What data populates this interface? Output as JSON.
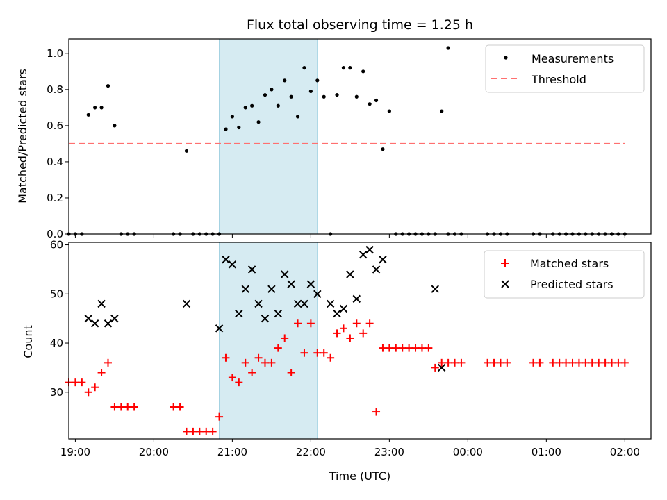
{
  "chart_data": [
    {
      "type": "scatter",
      "title": "Flux total observing time = 1.25 h",
      "xlabel": "",
      "ylabel": "Matched/Predicted stars",
      "xlim": [
        "18:55",
        "02:20"
      ],
      "ylim": [
        0,
        1.08
      ],
      "yticks": [
        0.0,
        0.2,
        0.4,
        0.6,
        0.8,
        1.0
      ],
      "ytick_labels": [
        "0.0",
        "0.2",
        "0.4",
        "0.6",
        "0.8",
        "1.0"
      ],
      "highlight_span": {
        "x0": "20:50",
        "x1": "22:05",
        "color": "#add8e6"
      },
      "legend_position": "top-right",
      "series": [
        {
          "name": "Measurements",
          "marker": "dot",
          "color": "#000000",
          "points": [
            [
              "18:55",
              0
            ],
            [
              "19:00",
              0
            ],
            [
              "19:05",
              0
            ],
            [
              "19:10",
              0.66
            ],
            [
              "19:15",
              0.7
            ],
            [
              "19:20",
              0.7
            ],
            [
              "19:25",
              0.82
            ],
            [
              "19:30",
              0.6
            ],
            [
              "19:35",
              0
            ],
            [
              "19:40",
              0
            ],
            [
              "19:45",
              0
            ],
            [
              "20:15",
              0
            ],
            [
              "20:20",
              0
            ],
            [
              "20:25",
              0.46
            ],
            [
              "20:30",
              0
            ],
            [
              "20:35",
              0
            ],
            [
              "20:40",
              0
            ],
            [
              "20:45",
              0
            ],
            [
              "20:50",
              0
            ],
            [
              "20:55",
              0.58
            ],
            [
              "21:00",
              0.65
            ],
            [
              "21:05",
              0.59
            ],
            [
              "21:10",
              0.7
            ],
            [
              "21:15",
              0.71
            ],
            [
              "21:20",
              0.62
            ],
            [
              "21:25",
              0.77
            ],
            [
              "21:30",
              0.8
            ],
            [
              "21:35",
              0.71
            ],
            [
              "21:40",
              0.85
            ],
            [
              "21:45",
              0.76
            ],
            [
              "21:50",
              0.65
            ],
            [
              "21:55",
              0.92
            ],
            [
              "22:00",
              0.79
            ],
            [
              "22:05",
              0.85
            ],
            [
              "22:10",
              0.76
            ],
            [
              "22:15",
              0
            ],
            [
              "22:20",
              0.77
            ],
            [
              "22:25",
              0.92
            ],
            [
              "22:30",
              0.92
            ],
            [
              "22:35",
              0.76
            ],
            [
              "22:40",
              0.9
            ],
            [
              "22:45",
              0.72
            ],
            [
              "22:50",
              0.74
            ],
            [
              "22:55",
              0.47
            ],
            [
              "23:00",
              0.68
            ],
            [
              "23:05",
              0
            ],
            [
              "23:10",
              0
            ],
            [
              "23:15",
              0
            ],
            [
              "23:20",
              0
            ],
            [
              "23:25",
              0
            ],
            [
              "23:30",
              0
            ],
            [
              "23:35",
              0
            ],
            [
              "23:40",
              0.68
            ],
            [
              "23:45",
              1.03
            ],
            [
              "23:45",
              0
            ],
            [
              "23:50",
              0
            ],
            [
              "23:55",
              0
            ],
            [
              "00:15",
              0
            ],
            [
              "00:20",
              0
            ],
            [
              "00:25",
              0
            ],
            [
              "00:30",
              0
            ],
            [
              "00:50",
              0
            ],
            [
              "00:55",
              0
            ],
            [
              "01:05",
              0
            ],
            [
              "01:10",
              0
            ],
            [
              "01:15",
              0
            ],
            [
              "01:20",
              0
            ],
            [
              "01:25",
              0
            ],
            [
              "01:30",
              0
            ],
            [
              "01:35",
              0
            ],
            [
              "01:40",
              0
            ],
            [
              "01:45",
              0
            ],
            [
              "01:50",
              0
            ],
            [
              "01:55",
              0
            ],
            [
              "02:00",
              0
            ]
          ]
        },
        {
          "name": "Threshold",
          "marker": "dashed-line",
          "color": "#ff7070",
          "points": [
            [
              "18:55",
              0.5
            ],
            [
              "02:00",
              0.5
            ]
          ]
        }
      ]
    },
    {
      "type": "scatter",
      "title": "",
      "xlabel": "Time (UTC)",
      "ylabel": "Count",
      "xlim": [
        "18:55",
        "02:20"
      ],
      "xticks": [
        "19:00",
        "20:00",
        "21:00",
        "22:00",
        "23:00",
        "00:00",
        "01:00",
        "02:00"
      ],
      "ylim": [
        20.5,
        60.5
      ],
      "yticks": [
        30,
        40,
        50,
        60
      ],
      "ytick_labels": [
        "30",
        "40",
        "50",
        "60"
      ],
      "highlight_span": {
        "x0": "20:50",
        "x1": "22:05",
        "color": "#add8e6"
      },
      "legend_position": "top-right",
      "series": [
        {
          "name": "Matched stars",
          "marker": "plus",
          "color": "#ff0000",
          "points": [
            [
              "18:55",
              32
            ],
            [
              "19:00",
              32
            ],
            [
              "19:05",
              32
            ],
            [
              "19:10",
              30
            ],
            [
              "19:15",
              31
            ],
            [
              "19:20",
              34
            ],
            [
              "19:25",
              36
            ],
            [
              "19:30",
              27
            ],
            [
              "19:35",
              27
            ],
            [
              "19:40",
              27
            ],
            [
              "19:45",
              27
            ],
            [
              "20:15",
              27
            ],
            [
              "20:20",
              27
            ],
            [
              "20:25",
              22
            ],
            [
              "20:30",
              22
            ],
            [
              "20:35",
              22
            ],
            [
              "20:40",
              22
            ],
            [
              "20:45",
              22
            ],
            [
              "20:50",
              25
            ],
            [
              "20:55",
              37
            ],
            [
              "21:00",
              33
            ],
            [
              "21:05",
              32
            ],
            [
              "21:10",
              36
            ],
            [
              "21:15",
              34
            ],
            [
              "21:20",
              37
            ],
            [
              "21:25",
              36
            ],
            [
              "21:30",
              36
            ],
            [
              "21:35",
              39
            ],
            [
              "21:40",
              41
            ],
            [
              "21:45",
              34
            ],
            [
              "21:50",
              44
            ],
            [
              "21:55",
              38
            ],
            [
              "22:00",
              44
            ],
            [
              "22:05",
              38
            ],
            [
              "22:10",
              38
            ],
            [
              "22:15",
              37
            ],
            [
              "22:20",
              42
            ],
            [
              "22:25",
              43
            ],
            [
              "22:30",
              41
            ],
            [
              "22:35",
              44
            ],
            [
              "22:40",
              42
            ],
            [
              "22:45",
              44
            ],
            [
              "22:50",
              26
            ],
            [
              "22:55",
              39
            ],
            [
              "23:00",
              39
            ],
            [
              "23:05",
              39
            ],
            [
              "23:10",
              39
            ],
            [
              "23:15",
              39
            ],
            [
              "23:20",
              39
            ],
            [
              "23:25",
              39
            ],
            [
              "23:30",
              39
            ],
            [
              "23:35",
              35
            ],
            [
              "23:40",
              36
            ],
            [
              "23:45",
              36
            ],
            [
              "23:50",
              36
            ],
            [
              "23:55",
              36
            ],
            [
              "00:15",
              36
            ],
            [
              "00:20",
              36
            ],
            [
              "00:25",
              36
            ],
            [
              "00:30",
              36
            ],
            [
              "00:50",
              36
            ],
            [
              "00:55",
              36
            ],
            [
              "01:05",
              36
            ],
            [
              "01:10",
              36
            ],
            [
              "01:15",
              36
            ],
            [
              "01:20",
              36
            ],
            [
              "01:25",
              36
            ],
            [
              "01:30",
              36
            ],
            [
              "01:35",
              36
            ],
            [
              "01:40",
              36
            ],
            [
              "01:45",
              36
            ],
            [
              "01:50",
              36
            ],
            [
              "01:55",
              36
            ],
            [
              "02:00",
              36
            ]
          ]
        },
        {
          "name": "Predicted stars",
          "marker": "x",
          "color": "#000000",
          "points": [
            [
              "19:10",
              45
            ],
            [
              "19:15",
              44
            ],
            [
              "19:20",
              48
            ],
            [
              "19:25",
              44
            ],
            [
              "19:30",
              45
            ],
            [
              "20:25",
              48
            ],
            [
              "20:50",
              43
            ],
            [
              "20:55",
              57
            ],
            [
              "21:00",
              56
            ],
            [
              "21:05",
              46
            ],
            [
              "21:10",
              51
            ],
            [
              "21:15",
              55
            ],
            [
              "21:20",
              48
            ],
            [
              "21:25",
              45
            ],
            [
              "21:30",
              51
            ],
            [
              "21:35",
              46
            ],
            [
              "21:40",
              54
            ],
            [
              "21:45",
              52
            ],
            [
              "21:50",
              48
            ],
            [
              "21:55",
              48
            ],
            [
              "22:00",
              52
            ],
            [
              "22:05",
              50
            ],
            [
              "22:15",
              48
            ],
            [
              "22:20",
              46
            ],
            [
              "22:25",
              47
            ],
            [
              "22:30",
              54
            ],
            [
              "22:35",
              49
            ],
            [
              "22:40",
              58
            ],
            [
              "22:45",
              59
            ],
            [
              "22:50",
              55
            ],
            [
              "22:55",
              57
            ],
            [
              "23:35",
              51
            ],
            [
              "23:40",
              35
            ]
          ]
        }
      ]
    }
  ],
  "legend": {
    "top": [
      "Measurements",
      "Threshold"
    ],
    "bottom": [
      "Matched stars",
      "Predicted stars"
    ]
  }
}
